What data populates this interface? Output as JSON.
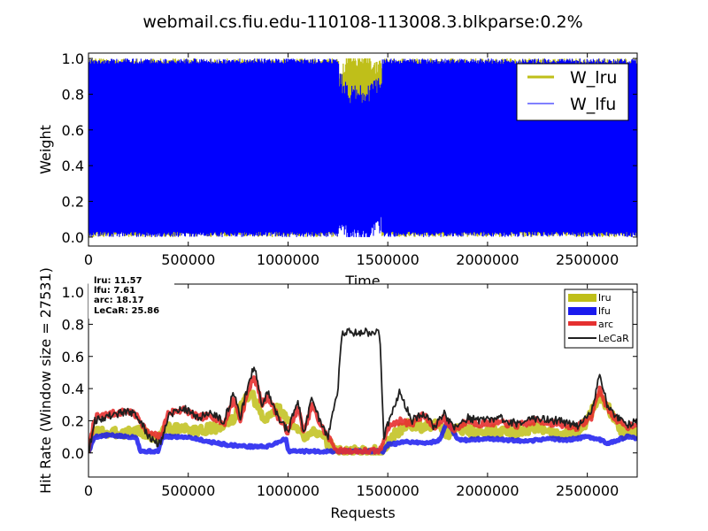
{
  "title": "webmail.cs.fiu.edu-110108-113008.3.blkparse:0.2%",
  "chart_data": [
    {
      "type": "line",
      "name": "weights",
      "xlabel": "Time",
      "ylabel": "Weight",
      "xlim": [
        0,
        2750000
      ],
      "ylim": [
        -0.05,
        1.03
      ],
      "xticks": [
        0,
        500000,
        1000000,
        1500000,
        2000000,
        2500000
      ],
      "xtick_labels": [
        "0",
        "500000",
        "1000000",
        "1500000",
        "2000000",
        "2500000"
      ],
      "yticks": [
        0.0,
        0.2,
        0.4,
        0.6,
        0.8,
        1.0
      ],
      "ytick_labels": [
        "0.0",
        "0.2",
        "0.4",
        "0.6",
        "0.8",
        "1.0"
      ],
      "legend_position": "top-right",
      "series": [
        {
          "name": "W_lru",
          "color": "#bfbf19",
          "note_values": "rapidly oscillating between 0 and 1",
          "x": [
            0,
            100000,
            200000,
            300000,
            400000,
            500000,
            600000,
            700000,
            800000,
            900000,
            1000000,
            1100000,
            1200000,
            1250000,
            1300000,
            1350000,
            1400000,
            1450000,
            1500000,
            1600000,
            1700000,
            1800000,
            1900000,
            2000000,
            2100000,
            2200000,
            2300000,
            2400000,
            2500000,
            2600000,
            2700000
          ],
          "values": [
            0.5,
            0.5,
            0.5,
            0.5,
            0.5,
            0.5,
            0.5,
            0.5,
            0.5,
            0.5,
            0.5,
            0.5,
            0.5,
            0.5,
            0.6,
            0.6,
            0.6,
            0.55,
            0.5,
            0.5,
            0.5,
            0.5,
            0.5,
            0.5,
            0.5,
            0.5,
            0.5,
            0.5,
            0.5,
            0.5,
            0.5
          ]
        },
        {
          "name": "W_lfu",
          "color": "#0000ff",
          "x": [
            0,
            100000,
            200000,
            300000,
            400000,
            500000,
            600000,
            700000,
            800000,
            900000,
            1000000,
            1100000,
            1200000,
            1250000,
            1300000,
            1350000,
            1400000,
            1450000,
            1500000,
            1600000,
            1700000,
            1800000,
            1900000,
            2000000,
            2100000,
            2200000,
            2300000,
            2400000,
            2500000,
            2600000,
            2700000
          ],
          "values": [
            0.5,
            0.5,
            0.5,
            0.5,
            0.5,
            0.5,
            0.5,
            0.5,
            0.5,
            0.5,
            0.5,
            0.5,
            0.5,
            0.5,
            0.4,
            0.4,
            0.4,
            0.45,
            0.5,
            0.5,
            0.5,
            0.5,
            0.5,
            0.5,
            0.5,
            0.5,
            0.5,
            0.5,
            0.5,
            0.5,
            0.5
          ]
        }
      ]
    },
    {
      "type": "line",
      "name": "hit-rate",
      "xlabel": "Requests",
      "ylabel": "Hit Rate (Window size = 27531)",
      "xlim": [
        0,
        2750000
      ],
      "ylim": [
        -0.15,
        1.05
      ],
      "xticks": [
        0,
        500000,
        1000000,
        1500000,
        2000000,
        2500000
      ],
      "xtick_labels": [
        "0",
        "500000",
        "1000000",
        "1500000",
        "2000000",
        "2500000"
      ],
      "yticks": [
        0.0,
        0.2,
        0.4,
        0.6,
        0.8,
        1.0
      ],
      "ytick_labels": [
        "0.0",
        "0.2",
        "0.4",
        "0.6",
        "0.8",
        "1.0"
      ],
      "legend_position": "top-right",
      "stats": [
        {
          "label": "lru:",
          "value": "11.57"
        },
        {
          "label": "lfu:",
          "value": "7.61"
        },
        {
          "label": "arc:",
          "value": "18.17"
        },
        {
          "label": "LeCaR:",
          "value": "25.86"
        }
      ],
      "series": [
        {
          "name": "lru",
          "color": "#bfbf19",
          "x": [
            0,
            30000,
            100000,
            200000,
            250000,
            350000,
            380000,
            450000,
            550000,
            650000,
            720000,
            780000,
            820000,
            880000,
            950000,
            1000000,
            1080000,
            1130000,
            1180000,
            1250000,
            1300000,
            1400000,
            1480000,
            1520000,
            1600000,
            1680000,
            1750000,
            1800000,
            1850000,
            1950000,
            2050000,
            2150000,
            2250000,
            2350000,
            2450000,
            2500000,
            2560000,
            2620000,
            2680000,
            2750000
          ],
          "values": [
            0.0,
            0.14,
            0.12,
            0.13,
            0.14,
            0.08,
            0.15,
            0.15,
            0.14,
            0.16,
            0.2,
            0.32,
            0.36,
            0.2,
            0.28,
            0.2,
            0.1,
            0.15,
            0.08,
            0.01,
            0.01,
            0.01,
            0.01,
            0.1,
            0.18,
            0.16,
            0.18,
            0.12,
            0.16,
            0.12,
            0.14,
            0.13,
            0.15,
            0.12,
            0.14,
            0.2,
            0.35,
            0.25,
            0.12,
            0.13
          ]
        },
        {
          "name": "lfu",
          "color": "#1a1aee",
          "x": [
            0,
            30000,
            100000,
            200000,
            240000,
            260000,
            350000,
            370000,
            500000,
            600000,
            700000,
            800000,
            900000,
            990000,
            1000000,
            1100000,
            1200000,
            1300000,
            1400000,
            1480000,
            1500000,
            1600000,
            1700000,
            1760000,
            1800000,
            1850000,
            1900000,
            2000000,
            2100000,
            2200000,
            2300000,
            2400000,
            2500000,
            2550000,
            2600000,
            2700000,
            2750000
          ],
          "values": [
            0.0,
            0.1,
            0.11,
            0.1,
            0.1,
            0.01,
            0.01,
            0.1,
            0.1,
            0.07,
            0.05,
            0.04,
            0.04,
            0.09,
            0.01,
            0.01,
            0.01,
            0.01,
            0.01,
            0.01,
            0.05,
            0.07,
            0.06,
            0.08,
            0.2,
            0.08,
            0.08,
            0.09,
            0.08,
            0.07,
            0.09,
            0.08,
            0.1,
            0.09,
            0.06,
            0.1,
            0.09
          ]
        },
        {
          "name": "arc",
          "color": "#e53030",
          "x": [
            0,
            30000,
            100000,
            200000,
            250000,
            300000,
            360000,
            400000,
            480000,
            550000,
            620000,
            680000,
            730000,
            760000,
            800000,
            830000,
            870000,
            900000,
            960000,
            1000000,
            1050000,
            1080000,
            1120000,
            1160000,
            1200000,
            1250000,
            1300000,
            1400000,
            1460000,
            1500000,
            1560000,
            1620000,
            1680000,
            1730000,
            1780000,
            1830000,
            1900000,
            1960000,
            2050000,
            2150000,
            2250000,
            2350000,
            2450000,
            2520000,
            2560000,
            2600000,
            2650000,
            2700000,
            2750000
          ],
          "values": [
            0.0,
            0.22,
            0.24,
            0.26,
            0.22,
            0.12,
            0.1,
            0.25,
            0.27,
            0.22,
            0.23,
            0.18,
            0.34,
            0.2,
            0.38,
            0.48,
            0.3,
            0.35,
            0.2,
            0.13,
            0.28,
            0.12,
            0.3,
            0.18,
            0.1,
            0.01,
            0.01,
            0.01,
            0.01,
            0.16,
            0.2,
            0.18,
            0.24,
            0.15,
            0.22,
            0.14,
            0.2,
            0.18,
            0.19,
            0.17,
            0.2,
            0.18,
            0.16,
            0.22,
            0.4,
            0.28,
            0.2,
            0.16,
            0.19
          ]
        },
        {
          "name": "LeCaR",
          "color": "#202020",
          "x": [
            0,
            30000,
            100000,
            200000,
            250000,
            300000,
            360000,
            400000,
            480000,
            550000,
            620000,
            680000,
            730000,
            760000,
            800000,
            830000,
            870000,
            900000,
            960000,
            1000000,
            1050000,
            1080000,
            1120000,
            1160000,
            1200000,
            1250000,
            1270000,
            1300000,
            1350000,
            1400000,
            1460000,
            1480000,
            1500000,
            1560000,
            1620000,
            1680000,
            1730000,
            1780000,
            1830000,
            1900000,
            1960000,
            2050000,
            2150000,
            2250000,
            2350000,
            2450000,
            2520000,
            2560000,
            2600000,
            2650000,
            2700000,
            2750000
          ],
          "values": [
            0.0,
            0.2,
            0.23,
            0.26,
            0.22,
            0.1,
            0.05,
            0.24,
            0.28,
            0.22,
            0.25,
            0.2,
            0.38,
            0.22,
            0.42,
            0.55,
            0.3,
            0.38,
            0.2,
            0.14,
            0.32,
            0.12,
            0.35,
            0.2,
            0.1,
            0.4,
            0.74,
            0.75,
            0.75,
            0.75,
            0.75,
            0.1,
            0.18,
            0.38,
            0.2,
            0.25,
            0.16,
            0.25,
            0.15,
            0.22,
            0.2,
            0.22,
            0.18,
            0.22,
            0.2,
            0.17,
            0.25,
            0.48,
            0.3,
            0.22,
            0.17,
            0.2
          ]
        }
      ]
    }
  ]
}
